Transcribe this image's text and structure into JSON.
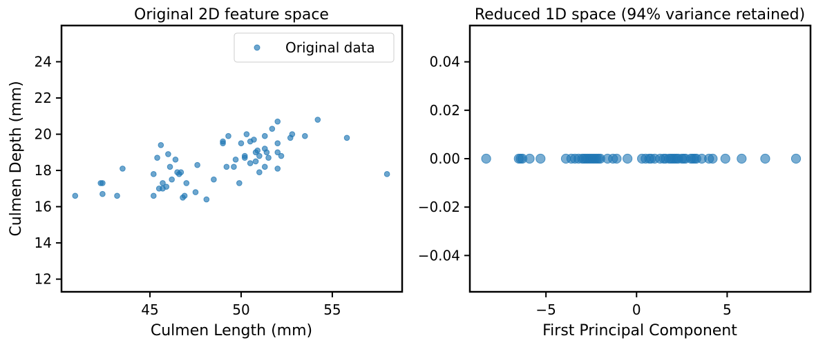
{
  "chart_data": [
    {
      "type": "scatter",
      "title": "Original 2D feature space",
      "xlabel": "Culmen Length (mm)",
      "ylabel": "Culmen Depth (mm)",
      "xlim": [
        40.15,
        58.83
      ],
      "ylim": [
        11.3,
        26.0
      ],
      "xticks": [
        45,
        50,
        55
      ],
      "yticks": [
        12,
        14,
        16,
        18,
        20,
        22,
        24
      ],
      "grid": false,
      "legend": {
        "placement": "top-right",
        "entries": [
          "Original data"
        ]
      },
      "series": [
        {
          "name": "Original data",
          "color": "#1f77b4",
          "points": [
            [
              40.9,
              16.6
            ],
            [
              42.3,
              17.3
            ],
            [
              42.4,
              17.3
            ],
            [
              42.4,
              16.7
            ],
            [
              43.2,
              16.6
            ],
            [
              43.5,
              18.1
            ],
            [
              45.2,
              16.6
            ],
            [
              45.2,
              17.8
            ],
            [
              45.4,
              18.7
            ],
            [
              45.5,
              17.0
            ],
            [
              45.6,
              19.4
            ],
            [
              45.7,
              17.3
            ],
            [
              45.7,
              17.0
            ],
            [
              45.9,
              17.1
            ],
            [
              46.0,
              18.9
            ],
            [
              46.1,
              18.2
            ],
            [
              46.2,
              17.5
            ],
            [
              46.4,
              18.6
            ],
            [
              46.5,
              17.9
            ],
            [
              46.6,
              17.8
            ],
            [
              46.7,
              17.9
            ],
            [
              46.8,
              16.5
            ],
            [
              46.9,
              16.6
            ],
            [
              47.0,
              17.3
            ],
            [
              47.5,
              16.8
            ],
            [
              47.6,
              18.3
            ],
            [
              48.1,
              16.4
            ],
            [
              48.5,
              17.5
            ],
            [
              49.0,
              19.6
            ],
            [
              49.0,
              19.5
            ],
            [
              49.2,
              18.2
            ],
            [
              49.3,
              19.9
            ],
            [
              49.6,
              18.2
            ],
            [
              49.7,
              18.6
            ],
            [
              49.9,
              17.3
            ],
            [
              50.0,
              19.5
            ],
            [
              50.2,
              18.8
            ],
            [
              50.2,
              18.7
            ],
            [
              50.3,
              20.0
            ],
            [
              50.5,
              18.4
            ],
            [
              50.5,
              19.6
            ],
            [
              50.7,
              19.7
            ],
            [
              50.8,
              18.5
            ],
            [
              50.8,
              19.0
            ],
            [
              50.9,
              19.1
            ],
            [
              51.0,
              18.8
            ],
            [
              51.0,
              17.9
            ],
            [
              51.3,
              19.2
            ],
            [
              51.3,
              18.2
            ],
            [
              51.3,
              19.9
            ],
            [
              51.4,
              19.0
            ],
            [
              51.5,
              18.7
            ],
            [
              51.7,
              20.3
            ],
            [
              52.0,
              18.1
            ],
            [
              52.0,
              19.0
            ],
            [
              52.0,
              20.7
            ],
            [
              52.0,
              19.5
            ],
            [
              52.2,
              18.8
            ],
            [
              52.7,
              19.8
            ],
            [
              52.8,
              20.0
            ],
            [
              53.5,
              19.9
            ],
            [
              54.2,
              20.8
            ],
            [
              55.8,
              19.8
            ],
            [
              58.0,
              17.8
            ]
          ]
        }
      ]
    },
    {
      "type": "scatter",
      "title": "Reduced 1D space (94% variance retained)",
      "xlabel": "First Principal Component",
      "ylabel": "",
      "xlim": [
        -9.2,
        9.6
      ],
      "ylim": [
        -0.055,
        0.055
      ],
      "xticks": [
        -5,
        0,
        5
      ],
      "xtick_labels": [
        "−5",
        "0",
        "5"
      ],
      "yticks": [
        -0.04,
        -0.02,
        0.0,
        0.02,
        0.04
      ],
      "ytick_labels": [
        "−0.04",
        "−0.02",
        "0.00",
        "0.02",
        "0.04"
      ],
      "grid": false,
      "series": [
        {
          "color": "#1f77b4",
          "x": [
            -8.3,
            -6.5,
            -6.4,
            -6.3,
            -5.9,
            -5.3,
            -3.9,
            -3.6,
            -3.4,
            -3.2,
            -3.0,
            -2.9,
            -2.8,
            -2.7,
            -2.6,
            -2.5,
            -2.4,
            -2.3,
            -2.2,
            -2.1,
            -2.0,
            -1.6,
            -1.3,
            -1.1,
            -0.5,
            0.3,
            0.5,
            0.7,
            0.8,
            1.0,
            1.3,
            1.5,
            1.6,
            1.8,
            1.9,
            2.0,
            2.1,
            2.2,
            2.3,
            2.5,
            2.6,
            2.7,
            3.0,
            3.1,
            3.2,
            3.3,
            3.6,
            4.0,
            4.2,
            4.9,
            5.8,
            7.1,
            8.8
          ],
          "y": 0.0
        }
      ]
    }
  ]
}
